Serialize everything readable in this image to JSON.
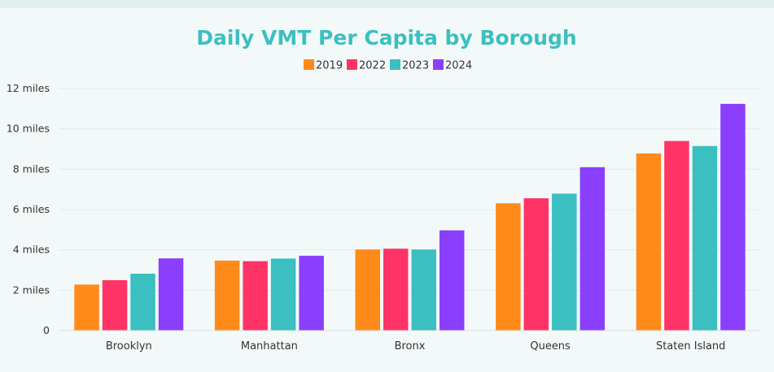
{
  "chart_data": {
    "type": "bar",
    "title": "Daily VMT Per Capita by Borough",
    "xlabel": "",
    "ylabel": "",
    "categories": [
      "Brooklyn",
      "Manhattan",
      "Bronx",
      "Queens",
      "Staten Island"
    ],
    "series": [
      {
        "name": "2019",
        "color": "#ff8a1a",
        "values": [
          2.28,
          3.47,
          4.02,
          6.31,
          8.78
        ]
      },
      {
        "name": "2022",
        "color": "#ff3366",
        "values": [
          2.5,
          3.44,
          4.06,
          6.56,
          9.4
        ]
      },
      {
        "name": "2023",
        "color": "#3bbfc1",
        "values": [
          2.82,
          3.57,
          4.02,
          6.79,
          9.15
        ]
      },
      {
        "name": "2024",
        "color": "#8a3ffc",
        "values": [
          3.58,
          3.71,
          4.97,
          8.1,
          11.24
        ]
      }
    ],
    "ylim": [
      0,
      12
    ],
    "yticks": [
      0,
      2,
      4,
      6,
      8,
      10,
      12
    ],
    "ytick_labels": [
      "0",
      "2 miles",
      "4 miles",
      "6 miles",
      "8 miles",
      "10 miles",
      "12 miles"
    ],
    "grid": true,
    "legend_position": "top-center"
  }
}
